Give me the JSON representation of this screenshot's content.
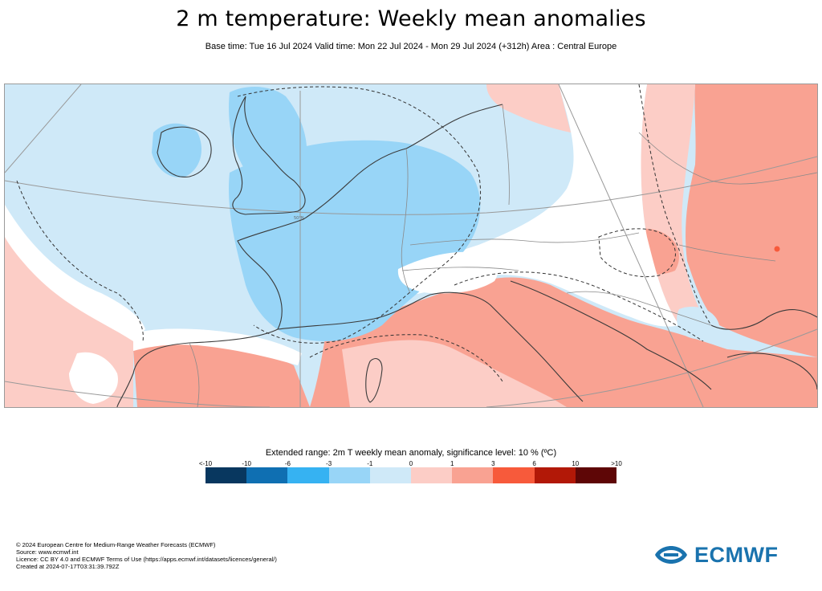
{
  "title": "2 m temperature: Weekly mean anomalies",
  "subtitle": "Base time: Tue 16 Jul 2024 Valid time: Mon 22 Jul 2024 - Mon 29 Jul 2024 (+312h) Area : Central Europe",
  "map": {
    "graticule_label": "50°N",
    "colors": {
      "cold_strong": "#98d5f7",
      "cold_light": "#cfe9f8",
      "neutral": "#ffffff",
      "warm_light": "#fccdc6",
      "warm_strong": "#f9a292"
    }
  },
  "legend": {
    "title": "Extended range: 2m T weekly mean anomaly, significance level: 10 % (ºC)",
    "ticks": [
      "<-10",
      "-10",
      "-6",
      "-3",
      "-1",
      "0",
      "1",
      "3",
      "6",
      "10",
      ">10"
    ],
    "colors": [
      "#08375f",
      "#0f6fb2",
      "#36b2f2",
      "#98d5f7",
      "#cfe9f8",
      "#fccdc6",
      "#f9a292",
      "#f75a3b",
      "#b21807",
      "#5e0606"
    ]
  },
  "footer": {
    "copyright": "© 2024 European Centre for Medium-Range Weather Forecasts (ECMWF)",
    "source": "Source: www.ecmwf.int",
    "licence": "Licence: CC BY 4.0 and ECMWF Terms of Use (https://apps.ecmwf.int/datasets/licences/general/)",
    "created": "Created at 2024-07-17T03:31:39.792Z"
  },
  "logo": {
    "text": "ECMWF",
    "color": "#1a73ae"
  }
}
